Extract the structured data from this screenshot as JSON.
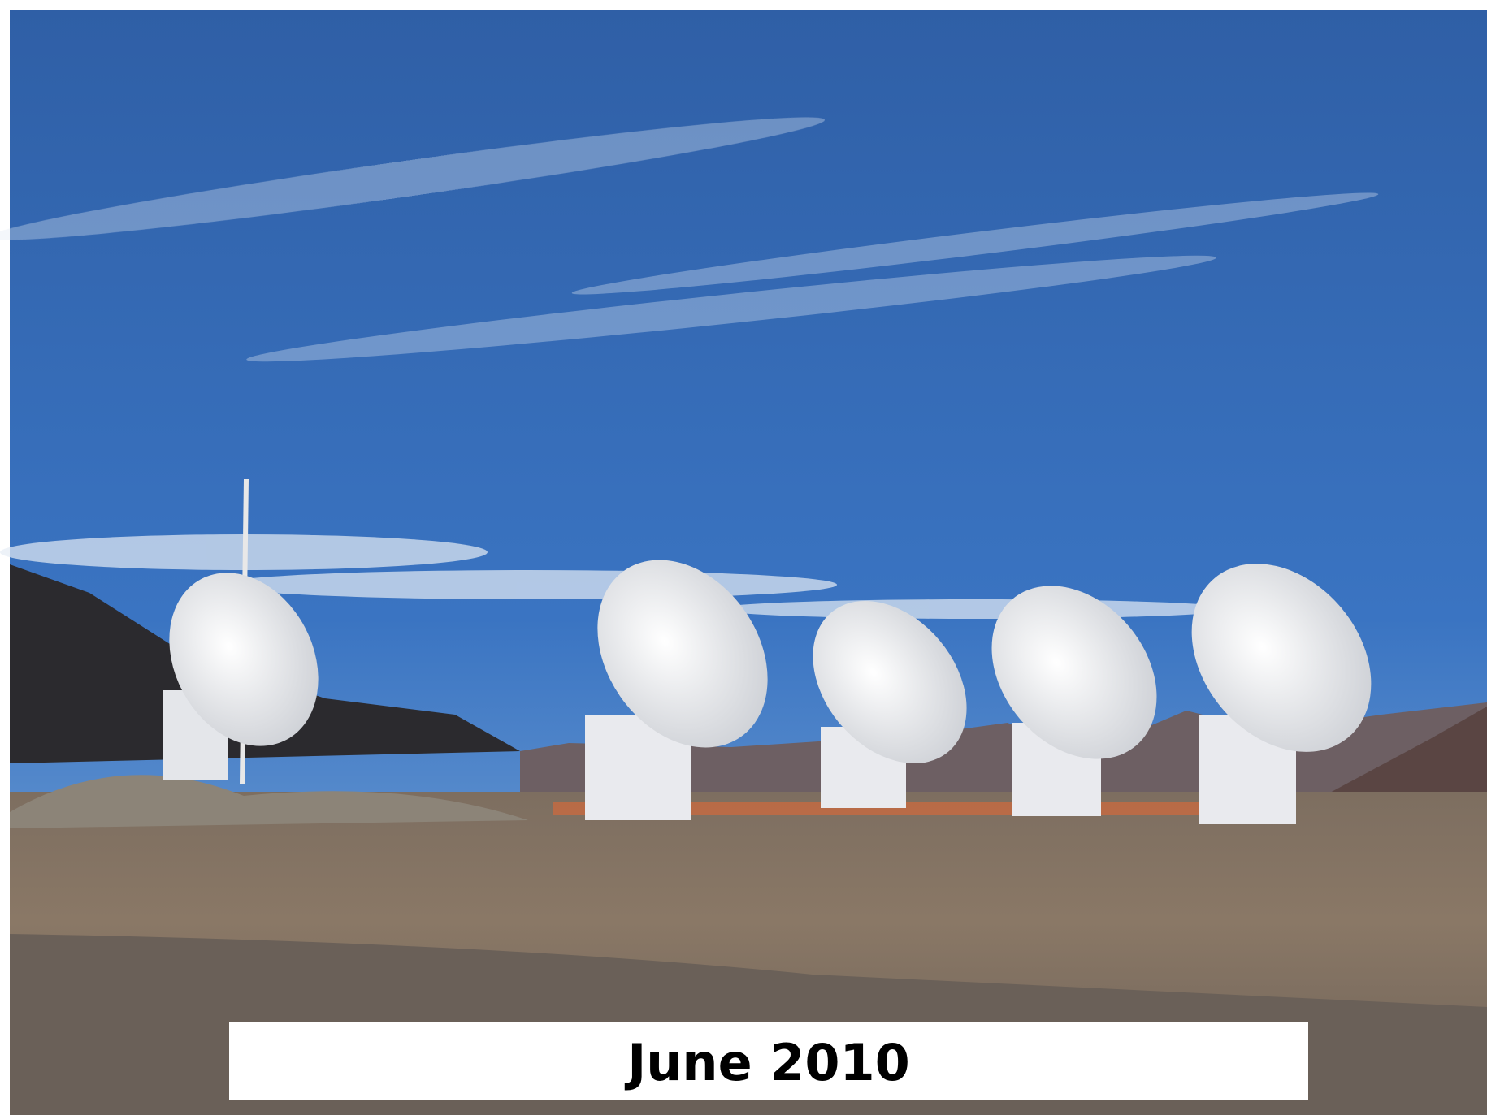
{
  "caption": "June 2010"
}
